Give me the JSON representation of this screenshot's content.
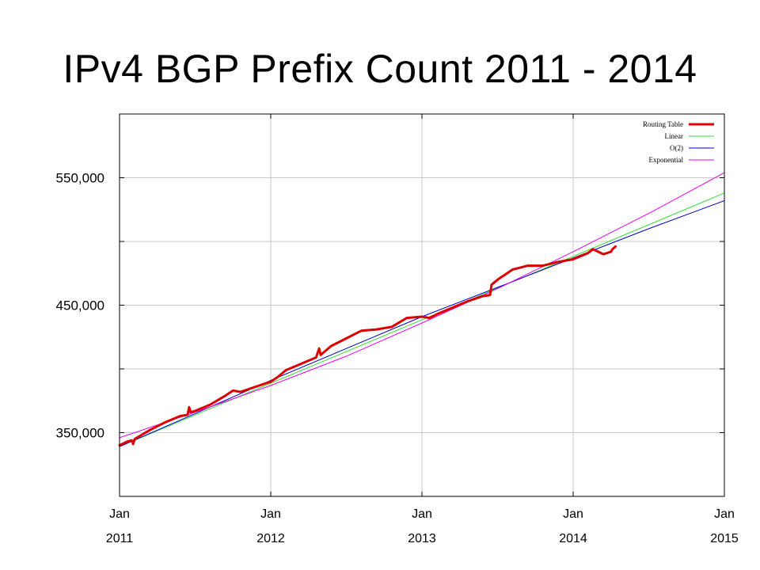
{
  "slide": {
    "title": "IPv4 BGP Prefix Count 2011 - 2014"
  },
  "chart_data": {
    "type": "line",
    "title": "IPv4 BGP Prefix Count 2011 - 2014",
    "xlabel": "",
    "ylabel": "",
    "xlim": [
      2011.0,
      2015.0
    ],
    "ylim": [
      300000,
      600000
    ],
    "grid": true,
    "legend_position": "top-right",
    "y_ticks": [
      {
        "value": 350000,
        "label": "350,000"
      },
      {
        "value": 450000,
        "label": "450,000"
      },
      {
        "value": 550000,
        "label": "550,000"
      }
    ],
    "y_minor_ticks": [
      400000,
      500000
    ],
    "x_ticks": [
      {
        "value": 2011.0,
        "line1": "Jan",
        "line2": "2011"
      },
      {
        "value": 2012.0,
        "line1": "Jan",
        "line2": "2012"
      },
      {
        "value": 2013.0,
        "line1": "Jan",
        "line2": "2013"
      },
      {
        "value": 2014.0,
        "line1": "Jan",
        "line2": "2014"
      },
      {
        "value": 2015.0,
        "line1": "Jan",
        "line2": "2015"
      }
    ],
    "series": [
      {
        "name": "Routing Table",
        "color": "#dd0000",
        "width": 3,
        "x": [
          2011.0,
          2011.05,
          2011.08,
          2011.09,
          2011.1,
          2011.2,
          2011.3,
          2011.4,
          2011.45,
          2011.46,
          2011.47,
          2011.5,
          2011.6,
          2011.7,
          2011.75,
          2011.8,
          2011.9,
          2012.0,
          2012.05,
          2012.1,
          2012.2,
          2012.3,
          2012.32,
          2012.33,
          2012.4,
          2012.5,
          2012.6,
          2012.7,
          2012.8,
          2012.9,
          2013.0,
          2013.05,
          2013.1,
          2013.2,
          2013.3,
          2013.4,
          2013.45,
          2013.46,
          2013.5,
          2013.6,
          2013.7,
          2013.8,
          2013.9,
          2014.0,
          2014.1,
          2014.13,
          2014.2,
          2014.25,
          2014.26,
          2014.28
        ],
        "values": [
          340000,
          343000,
          344000,
          341000,
          345000,
          352000,
          358000,
          363000,
          364000,
          370000,
          366000,
          367000,
          372000,
          379000,
          383000,
          382000,
          386000,
          390000,
          394000,
          399000,
          404000,
          409000,
          416000,
          411000,
          418000,
          424000,
          430000,
          431000,
          433000,
          440000,
          441000,
          440000,
          443000,
          448000,
          453000,
          457000,
          458000,
          466000,
          470000,
          478000,
          481000,
          481000,
          484000,
          486000,
          491000,
          494000,
          490000,
          492000,
          494000,
          496000
        ]
      },
      {
        "name": "Linear",
        "color": "#33dd33",
        "width": 1,
        "x": [
          2011.0,
          2015.0
        ],
        "values": [
          339000,
          538000
        ]
      },
      {
        "name": "O(2)",
        "color": "#0000cc",
        "width": 1,
        "x": [
          2011.0,
          2011.5,
          2012.0,
          2012.5,
          2013.0,
          2013.5,
          2014.0,
          2014.5,
          2015.0
        ],
        "values": [
          339000,
          365000,
          391000,
          416000,
          441000,
          464000,
          487000,
          510000,
          532000
        ]
      },
      {
        "name": "Exponential",
        "color": "#ee00ee",
        "width": 1,
        "x": [
          2011.0,
          2011.5,
          2012.0,
          2012.5,
          2013.0,
          2013.5,
          2014.0,
          2014.5,
          2015.0
        ],
        "values": [
          346000,
          366000,
          387000,
          410000,
          436000,
          463000,
          492000,
          522000,
          554000
        ]
      }
    ]
  }
}
